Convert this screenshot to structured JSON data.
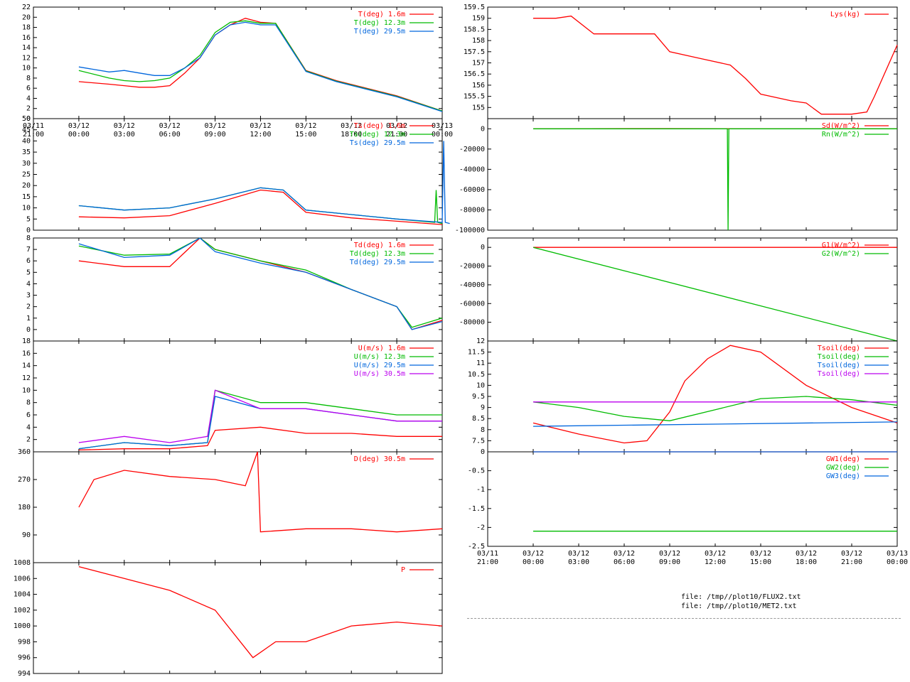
{
  "colors": {
    "red": "#ff0000",
    "green": "#00bb00",
    "blue": "#0066dd",
    "purple": "#bb00ee"
  },
  "files": [
    "file: /tmp//plot10/FLUX2.txt",
    "file: /tmp//plot10/MET2.txt"
  ],
  "chart_data": [
    {
      "type": "line",
      "panel": "left-1",
      "x_start": "03/11 21:00",
      "x_end": "03/13 00:00",
      "xtick_labels": [
        [
          "03/11",
          "21:00"
        ],
        [
          "03/12",
          "00:00"
        ],
        [
          "03/12",
          "03:00"
        ],
        [
          "03/12",
          "06:00"
        ],
        [
          "03/12",
          "09:00"
        ],
        [
          "03/12",
          "12:00"
        ],
        [
          "03/12",
          "15:00"
        ],
        [
          "03/12",
          "18:00"
        ],
        [
          "03/12",
          "21:00"
        ],
        [
          "03/13",
          "00:00"
        ]
      ],
      "ylim": [
        0,
        22
      ],
      "yticks": [
        0,
        2,
        4,
        6,
        8,
        10,
        12,
        14,
        16,
        18,
        20,
        22
      ],
      "series": [
        {
          "name": "T(deg)  1.6m",
          "color": "red",
          "x": [
            3,
            5,
            6,
            7,
            8,
            9,
            10,
            11,
            12,
            13,
            14,
            15,
            16,
            18,
            20,
            24,
            27
          ],
          "y": [
            7.3,
            6.8,
            6.5,
            6.2,
            6.2,
            6.5,
            9.0,
            12,
            16.5,
            18.5,
            19.8,
            19.0,
            18.8,
            9.5,
            7.5,
            4.5,
            1.5
          ]
        },
        {
          "name": "T(deg) 12.3m",
          "color": "green",
          "x": [
            3,
            5,
            6,
            7,
            8,
            9,
            10,
            11,
            12,
            13,
            14,
            15,
            16,
            18,
            20,
            24,
            27
          ],
          "y": [
            9.5,
            8.0,
            7.5,
            7.3,
            7.5,
            8.0,
            10.0,
            12.5,
            17.0,
            19.0,
            19.3,
            18.8,
            18.8,
            9.4,
            7.4,
            4.4,
            1.5
          ]
        },
        {
          "name": "T(deg) 29.5m",
          "color": "blue",
          "x": [
            3,
            5,
            6,
            7,
            8,
            9,
            10,
            11,
            12,
            13,
            14,
            15,
            16,
            18,
            20,
            24,
            27
          ],
          "y": [
            10.2,
            9.2,
            9.5,
            9.0,
            8.5,
            8.5,
            10.0,
            12.0,
            16.5,
            18.5,
            19.0,
            18.5,
            18.5,
            9.3,
            7.3,
            4.3,
            1.4
          ]
        }
      ]
    },
    {
      "type": "line",
      "panel": "left-2",
      "ylim": [
        0,
        50
      ],
      "yticks": [
        0,
        5,
        10,
        15,
        20,
        25,
        30,
        35,
        40,
        45,
        50
      ],
      "series": [
        {
          "name": "Ts(deg)  1.6m",
          "color": "red",
          "x": [
            3,
            6,
            9,
            12,
            15,
            16.5,
            18,
            21,
            24,
            27
          ],
          "y": [
            6,
            5.5,
            6.5,
            12,
            18,
            17,
            8,
            5.5,
            4,
            2.5
          ]
        },
        {
          "name": "Ts(deg) 12.3m",
          "color": "green",
          "x": [
            3,
            6,
            9,
            12,
            15,
            16.5,
            18,
            21,
            24,
            26.5,
            26.6,
            26.7,
            27
          ],
          "y": [
            11,
            9,
            10,
            14,
            19,
            18,
            9,
            7,
            5,
            3.5,
            18,
            3.5,
            3
          ]
        },
        {
          "name": "Ts(deg) 29.5m",
          "color": "blue",
          "x": [
            3,
            6,
            9,
            12,
            15,
            16.5,
            18,
            21,
            24,
            27,
            27.1,
            27.2,
            27.5
          ],
          "y": [
            11,
            9,
            10,
            14,
            19,
            18,
            9,
            7,
            5,
            3.5,
            40,
            3.5,
            3
          ]
        }
      ]
    },
    {
      "type": "line",
      "panel": "left-3",
      "ylim": [
        -1,
        8
      ],
      "yticks": [
        0,
        1,
        2,
        3,
        4,
        5,
        6,
        7,
        8
      ],
      "series": [
        {
          "name": "Td(deg)  1.6m",
          "color": "red",
          "x": [
            3,
            6,
            9,
            11,
            12,
            15,
            18,
            21,
            24,
            25,
            27
          ],
          "y": [
            6,
            5.5,
            5.5,
            8.2,
            7,
            6,
            5,
            3.5,
            2,
            0,
            0.8
          ]
        },
        {
          "name": "Td(deg) 12.3m",
          "color": "green",
          "x": [
            3,
            6,
            9,
            11,
            12,
            15,
            18,
            21,
            24,
            25,
            27
          ],
          "y": [
            7.3,
            6.5,
            6.6,
            8.3,
            7,
            6,
            5.2,
            3.5,
            2,
            0.2,
            1.0
          ]
        },
        {
          "name": "Td(deg) 29.5m",
          "color": "blue",
          "x": [
            3,
            6,
            9,
            11,
            12,
            15,
            18,
            21,
            24,
            25,
            27
          ],
          "y": [
            7.5,
            6.3,
            6.5,
            8.3,
            6.8,
            5.8,
            5,
            3.5,
            2,
            0,
            0.7
          ]
        }
      ]
    },
    {
      "type": "line",
      "panel": "left-4",
      "ylim": [
        0,
        18
      ],
      "yticks": [
        2,
        4,
        6,
        8,
        10,
        12,
        14,
        16,
        18
      ],
      "series": [
        {
          "name": "U(m/s)  1.6m",
          "color": "red",
          "x": [
            3,
            6,
            9,
            11.5,
            12,
            15,
            18,
            21,
            24,
            27
          ],
          "y": [
            0.3,
            0.5,
            0.5,
            1.0,
            3.5,
            4.0,
            3.0,
            3.0,
            2.5,
            2.5
          ]
        },
        {
          "name": "U(m/s) 12.3m",
          "color": "green",
          "x": [
            3,
            6,
            9,
            11.5,
            12,
            15,
            18,
            21,
            24,
            27
          ],
          "y": [
            0.5,
            1.5,
            1.0,
            1.5,
            10,
            8,
            8,
            7,
            6,
            6
          ]
        },
        {
          "name": "U(m/s) 29.5m",
          "color": "blue",
          "x": [
            3,
            6,
            9,
            11.5,
            12,
            15,
            18,
            21,
            24,
            27
          ],
          "y": [
            0.5,
            1.5,
            1.0,
            1.5,
            9,
            7,
            7,
            6,
            5,
            5
          ]
        },
        {
          "name": "U(m/s) 30.5m",
          "color": "purple",
          "x": [
            3,
            6,
            9,
            11.5,
            12,
            15,
            18,
            21,
            24,
            27
          ],
          "y": [
            1.5,
            2.5,
            1.5,
            2.5,
            10,
            7,
            7,
            6,
            5,
            5
          ]
        }
      ]
    },
    {
      "type": "line",
      "panel": "left-5",
      "ylim": [
        0,
        360
      ],
      "yticks": [
        90,
        180,
        270,
        360
      ],
      "series": [
        {
          "name": "D(deg)  30.5m",
          "color": "red",
          "x": [
            3,
            4,
            6,
            9,
            12,
            14,
            14.8,
            15,
            18,
            21,
            24,
            27
          ],
          "y": [
            180,
            270,
            300,
            280,
            270,
            250,
            360,
            100,
            110,
            110,
            100,
            110
          ]
        }
      ]
    },
    {
      "type": "line",
      "panel": "left-6",
      "ylim": [
        994,
        1008
      ],
      "yticks": [
        994,
        996,
        998,
        1000,
        1002,
        1004,
        1006,
        1008
      ],
      "series": [
        {
          "name": "P",
          "color": "red",
          "x": [
            3,
            6,
            9,
            12,
            14.5,
            16,
            18,
            21,
            24,
            27
          ],
          "y": [
            1007.5,
            1006,
            1004.5,
            1002,
            996,
            998,
            998,
            1000,
            1000.5,
            1000
          ]
        }
      ]
    },
    {
      "type": "line",
      "panel": "right-1",
      "ylim": [
        154.5,
        159.5
      ],
      "yticks": [
        155,
        155.5,
        156,
        156.5,
        157,
        157.5,
        158,
        158.5,
        159,
        159.5
      ],
      "series": [
        {
          "name": "Lys(kg)",
          "color": "red",
          "x": [
            0,
            1.5,
            2.5,
            4,
            5,
            6,
            8,
            9,
            11,
            13,
            14,
            15,
            17,
            18,
            19,
            20,
            21,
            22,
            22.5,
            24
          ],
          "y": [
            159,
            159,
            159.1,
            158.3,
            158.3,
            158.3,
            158.3,
            157.5,
            157.2,
            156.9,
            156.3,
            155.6,
            155.3,
            155.2,
            154.7,
            154.7,
            154.7,
            154.8,
            155.5,
            157.8
          ]
        }
      ]
    },
    {
      "type": "line",
      "panel": "right-2",
      "ylim": [
        -100000,
        10000
      ],
      "yticks": [
        -100000,
        -80000,
        -60000,
        -40000,
        -20000,
        0
      ],
      "series": [
        {
          "name": "Sd(W/m^2)",
          "color": "red",
          "x": [
            3,
            12,
            18,
            27
          ],
          "y": [
            0,
            200,
            0,
            0
          ]
        },
        {
          "name": "Rn(W/m^2)",
          "color": "green",
          "x": [
            3,
            15.8,
            15.85,
            15.9,
            27
          ],
          "y": [
            0,
            0,
            -100000,
            0,
            0
          ]
        }
      ]
    },
    {
      "type": "line",
      "panel": "right-3",
      "ylim": [
        -100000,
        10000
      ],
      "yticks": [
        -80000,
        -60000,
        -40000,
        -20000,
        0
      ],
      "series": [
        {
          "name": "G1(W/m^2)",
          "color": "red",
          "x": [
            3,
            27
          ],
          "y": [
            0,
            0
          ]
        },
        {
          "name": "G2(W/m^2)",
          "color": "green",
          "x": [
            3,
            27
          ],
          "y": [
            0,
            -100000
          ]
        }
      ]
    },
    {
      "type": "line",
      "panel": "right-4",
      "ylim": [
        7,
        12
      ],
      "yticks": [
        7.5,
        8,
        8.5,
        9,
        9.5,
        10,
        10.5,
        11,
        11.5,
        12
      ],
      "series": [
        {
          "name": "Tsoil(deg)",
          "color": "red",
          "x": [
            0,
            3,
            6,
            7.5,
            9,
            10,
            11.5,
            13,
            15,
            18,
            21,
            24
          ],
          "y": [
            8.3,
            7.8,
            7.4,
            7.5,
            8.8,
            10.2,
            11.2,
            11.8,
            11.5,
            10,
            9,
            8.3
          ]
        },
        {
          "name": "Tsoil(deg)",
          "color": "green",
          "x": [
            0,
            3,
            6,
            9,
            12,
            15,
            18,
            21,
            24
          ],
          "y": [
            9.25,
            9,
            8.6,
            8.4,
            8.9,
            9.4,
            9.5,
            9.35,
            9.1
          ]
        },
        {
          "name": "Tsoil(deg)",
          "color": "blue",
          "x": [
            0,
            24
          ],
          "y": [
            8.15,
            8.35
          ]
        },
        {
          "name": "Tsoil(deg)",
          "color": "purple",
          "x": [
            0,
            24
          ],
          "y": [
            9.25,
            9.25
          ]
        }
      ]
    },
    {
      "type": "line",
      "panel": "right-5",
      "ylim": [
        -2.5,
        0
      ],
      "yticks": [
        -2.5,
        -2,
        -1.5,
        -1,
        -0.5,
        0
      ],
      "xtick_labels": [
        [
          "03/11",
          "21:00"
        ],
        [
          "03/12",
          "00:00"
        ],
        [
          "03/12",
          "03:00"
        ],
        [
          "03/12",
          "06:00"
        ],
        [
          "03/12",
          "09:00"
        ],
        [
          "03/12",
          "12:00"
        ],
        [
          "03/12",
          "15:00"
        ],
        [
          "03/12",
          "18:00"
        ],
        [
          "03/12",
          "21:00"
        ],
        [
          "03/13",
          "00:00"
        ]
      ],
      "series": [
        {
          "name": "GW1(deg)",
          "color": "red",
          "x": [
            0,
            24
          ],
          "y": [
            0,
            0
          ]
        },
        {
          "name": "GW2(deg)",
          "color": "green",
          "x": [
            0,
            24
          ],
          "y": [
            -2.1,
            -2.1
          ]
        },
        {
          "name": "GW3(deg)",
          "color": "blue",
          "x": [
            0,
            24
          ],
          "y": [
            0,
            0
          ]
        }
      ]
    }
  ]
}
